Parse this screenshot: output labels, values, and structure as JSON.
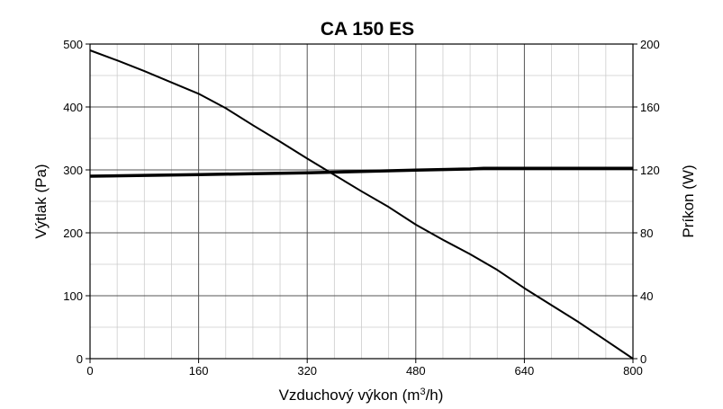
{
  "chart_data": {
    "type": "line",
    "title": "CA 150 ES",
    "xlabel": "Vzduchový výkon (m",
    "xlabel_sup": "3",
    "xlabel_end": "/h)",
    "ylabel": "Výtlak (Pa)",
    "y2label": "Príkon (W)",
    "xlim": [
      0,
      800
    ],
    "ylim": [
      0,
      500
    ],
    "y2lim": [
      0,
      200
    ],
    "xticks": [
      0,
      160,
      320,
      480,
      640,
      800
    ],
    "yticks": [
      0,
      100,
      200,
      300,
      400,
      500
    ],
    "y2ticks": [
      0,
      40,
      80,
      120,
      160,
      200
    ],
    "grid": true,
    "series": [
      {
        "axis": "left",
        "x": [
          0,
          40,
          80,
          120,
          160,
          200,
          240,
          280,
          320,
          360,
          400,
          440,
          480,
          520,
          560,
          600,
          640,
          680,
          720,
          760,
          800
        ],
        "y": [
          490,
          474,
          457,
          439,
          421,
          398,
          371,
          345,
          318,
          292,
          266,
          241,
          213,
          189,
          166,
          141,
          112,
          85,
          58,
          29,
          0
        ]
      },
      {
        "axis": "right",
        "x": [
          0,
          80,
          160,
          240,
          320,
          400,
          480,
          560,
          580,
          640,
          720,
          800
        ],
        "y": [
          116,
          116.5,
          117,
          117.6,
          118.2,
          119,
          119.8,
          120.6,
          121,
          121,
          121,
          121
        ]
      }
    ]
  }
}
